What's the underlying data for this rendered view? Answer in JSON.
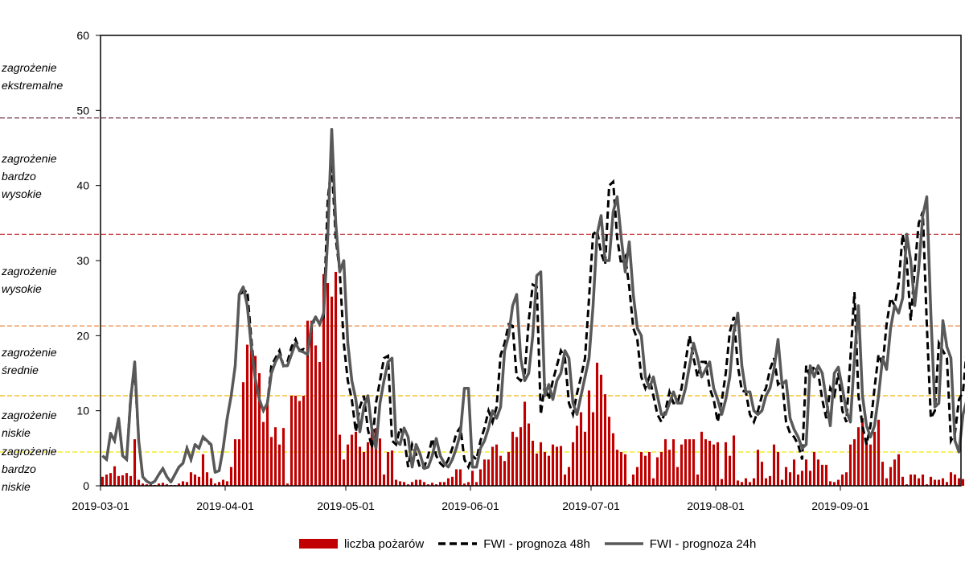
{
  "chart_data": {
    "type": "bar+line",
    "y_ticks": [
      "0",
      "10",
      "20",
      "30",
      "40",
      "50",
      "60"
    ],
    "x_ticks": [
      "2019-03-01",
      "2019-04-01",
      "2019-05-01",
      "2019-06-01",
      "2019-07-01",
      "2019-08-01",
      "2019-09-01"
    ],
    "ylim": [
      0,
      60
    ],
    "x_start": "2019-03-01",
    "x_end": "2019-09-30",
    "thresholds": [
      {
        "value": 4.5,
        "color": "#f2e600"
      },
      {
        "value": 12,
        "color": "#f0b400"
      },
      {
        "value": 21.3,
        "color": "#e87722"
      },
      {
        "value": 33.5,
        "color": "#c0282d"
      },
      {
        "value": 49,
        "color": "#5e1a2f"
      }
    ],
    "zones": [
      {
        "lines": [
          "zagrożenie",
          "bardzo",
          "niskie"
        ]
      },
      {
        "lines": [
          "zagrożenie",
          "niskie"
        ]
      },
      {
        "lines": [
          "zagrożenie",
          "średnie"
        ]
      },
      {
        "lines": [
          "zagrożenie",
          "wysokie"
        ]
      },
      {
        "lines": [
          "zagrożenie",
          "bardzo",
          "wysokie"
        ]
      },
      {
        "lines": [
          "zagrożenie",
          "ekstremalne"
        ]
      }
    ],
    "series": [
      {
        "name": "liczba pożarów",
        "kind": "bar",
        "color": "#c00000",
        "values": [
          1.2,
          1.5,
          1.7,
          2.6,
          1.3,
          1.4,
          1.7,
          1.3,
          6.2,
          0.8,
          0.3,
          0.2,
          0.2,
          0.1,
          0.3,
          0.4,
          0.2,
          0.1,
          0.1,
          0.3,
          0.6,
          0.5,
          1.8,
          1.5,
          1.2,
          4.2,
          1.8,
          1,
          0.3,
          0.5,
          0.8,
          0.6,
          2.5,
          6.2,
          6.2,
          13.8,
          18.8,
          18.8,
          17.3,
          15,
          8.5,
          11.3,
          6.5,
          7.8,
          5.5,
          7.7,
          0.3,
          12,
          12,
          11.3,
          12,
          22,
          22,
          18.7,
          16.5,
          28.2,
          27,
          25.2,
          28.5,
          6.8,
          3.5,
          5.5,
          6.8,
          7.2,
          5.2,
          4.5,
          5.8,
          7.5,
          7.7,
          6.3,
          1.5,
          4.5,
          4.7,
          0.8,
          0.6,
          0.5,
          0.2,
          0.5,
          0.8,
          0.8,
          0.5,
          0.2,
          0.4,
          0.2,
          0.5,
          0.5,
          1,
          1.2,
          2.2,
          2.2,
          0.3,
          0.5,
          2,
          0.5,
          2.2,
          3.5,
          3.5,
          5.2,
          5.5,
          4,
          3.3,
          4.5,
          7.2,
          6.5,
          7.8,
          11.2,
          8.3,
          6,
          4.3,
          5.8,
          4.5,
          4,
          5.5,
          5.2,
          5.3,
          1.5,
          2.5,
          5.8,
          8,
          9.8,
          7.2,
          12.7,
          9.8,
          16.4,
          14.8,
          12.2,
          9.2,
          7,
          4.8,
          4.5,
          4.2,
          0.2,
          1.5,
          2.5,
          4.5,
          4,
          4.5,
          1,
          3.8,
          4.5,
          6.2,
          4.8,
          6.2,
          2.5,
          5.5,
          6.2,
          6.2,
          6.2,
          1.5,
          7.2,
          6.2,
          6,
          5.5,
          5.8,
          0.9,
          5.8,
          4,
          6.7,
          0.7,
          0.5,
          1,
          0.5,
          1,
          4.8,
          3.2,
          1,
          1.3,
          5.5,
          4.5,
          0.8,
          2.5,
          1.8,
          3.5,
          1.5,
          2,
          3.5,
          2,
          4.5,
          3.5,
          2.8,
          2.8,
          0.6,
          0.5,
          0.8,
          1.5,
          1.8,
          5.5,
          6.2,
          7.8,
          9,
          6.2,
          5.5,
          7.2,
          8.8,
          3.2,
          1,
          2.5,
          3.5,
          4.2,
          1.2,
          0.2,
          1.5,
          1.5,
          1,
          1.5,
          0.2,
          1.2,
          0.8,
          0.8,
          1,
          0.5,
          1.8,
          1.5,
          1,
          0.9,
          0.5,
          0.8,
          0.4,
          0.8,
          0.2
        ]
      },
      {
        "name": "FWI - prognoza 48h",
        "kind": "line",
        "dash": "9,5",
        "color": "#000000",
        "values": [
          4,
          3.5,
          7,
          6,
          9,
          4,
          3.5,
          12,
          15.3,
          6,
          1.2,
          0.6,
          0.3,
          0.6,
          1.5,
          2.3,
          1.2,
          0.5,
          1.5,
          2.5,
          3,
          5,
          3.5,
          5.5,
          5,
          6.5,
          5.8,
          5.5,
          1.8,
          2,
          5,
          9,
          12,
          16,
          25.5,
          25.8,
          26,
          19.5,
          14.2,
          11.5,
          10,
          11,
          16,
          17,
          18,
          16,
          16.5,
          18.5,
          19.5,
          18,
          18.2,
          17.5,
          21,
          22.6,
          21.5,
          22.5,
          38,
          43,
          33,
          28.5,
          19,
          14,
          11.5,
          7.2,
          10.5,
          12,
          7.5,
          5,
          11,
          14,
          17,
          17.3,
          6,
          5.5,
          7.7,
          6.5,
          2.5,
          5.5,
          4.2,
          2.3,
          2.5,
          4,
          6.3,
          4,
          3,
          2.5,
          3.5,
          5,
          7,
          7.8,
          3.5,
          2.5,
          4,
          3.5,
          6,
          7.7,
          10,
          8.5,
          10.5,
          17.4,
          19,
          21.5,
          21.3,
          14.5,
          14,
          15,
          22,
          26.8,
          26.5,
          9.5,
          13.5,
          11.5,
          14,
          16,
          18,
          17,
          11,
          9.5,
          12.3,
          14.5,
          17,
          25,
          33.5,
          34,
          31,
          29.5,
          40,
          40.5,
          33,
          29.5,
          30.5,
          26.5,
          21,
          19.5,
          14.5,
          13,
          14.5,
          12,
          9.5,
          8.5,
          10,
          12.5,
          11,
          11,
          13,
          16.5,
          20,
          17,
          14.5,
          16.5,
          16.5,
          13,
          11.5,
          8.5,
          11.3,
          15,
          20.5,
          22.5,
          16,
          12.7,
          12.5,
          9.5,
          8.5,
          10,
          12,
          13,
          15.5,
          17,
          13.5,
          14,
          8.5,
          7,
          6.5,
          5.5,
          3.5,
          16,
          14.5,
          16,
          15,
          11.5,
          9,
          13,
          12,
          15,
          10,
          8.5,
          17,
          25.8,
          12,
          8,
          5.5,
          8,
          13,
          17.5,
          16,
          21.5,
          25,
          24,
          27,
          33.5,
          30,
          22,
          29,
          35,
          36.5,
          21.5,
          9,
          10,
          19,
          18,
          17,
          6,
          7,
          11.5,
          12.5,
          18.5,
          20.5,
          13.5,
          15,
          18,
          24.5,
          26.8,
          16,
          6.5,
          8,
          7.5,
          13.5,
          17,
          22,
          19.5,
          14,
          7,
          5.5,
          8.5,
          5,
          10,
          7.5
        ]
      },
      {
        "name": "FWI - prognoza 24h",
        "kind": "line",
        "color": "#595959",
        "values": [
          4,
          3.5,
          7,
          6,
          9,
          4,
          3.5,
          11.5,
          16.5,
          6,
          1.2,
          0.6,
          0.3,
          0.6,
          1.5,
          2.3,
          1.2,
          0.5,
          1.5,
          2.5,
          3,
          5,
          3.5,
          5.5,
          5,
          6.5,
          6,
          5.5,
          1.8,
          2,
          5,
          9,
          12,
          16,
          25.5,
          26.5,
          24,
          18.5,
          14.2,
          11.5,
          10,
          11,
          15,
          16.5,
          17.5,
          16,
          16,
          17.5,
          19,
          18,
          17.8,
          17.5,
          21.5,
          22.5,
          21.5,
          23,
          33,
          47.5,
          35,
          28.5,
          30,
          19,
          14,
          11.5,
          7.2,
          10.5,
          12,
          7.5,
          5,
          11,
          14,
          16.5,
          17,
          6,
          5.5,
          7.7,
          6.5,
          2.5,
          5.5,
          4.2,
          2.3,
          2.5,
          4,
          6.3,
          4,
          3,
          2.5,
          3.5,
          5,
          7,
          13,
          13,
          2.5,
          2.5,
          5,
          6,
          7.7,
          10,
          9,
          10.5,
          18,
          20,
          24,
          25.5,
          17,
          14,
          15,
          20,
          28,
          28.5,
          12,
          13.5,
          11.5,
          14,
          15,
          18,
          17,
          11,
          9.5,
          12,
          14.5,
          17,
          24,
          33.5,
          36,
          30,
          30,
          36.5,
          38.5,
          33,
          28.5,
          32.5,
          25.5,
          21,
          20,
          14.5,
          13,
          14.5,
          12,
          9.5,
          9.5,
          11,
          12.5,
          11,
          11,
          13,
          16,
          19,
          17,
          14.5,
          15.5,
          16.5,
          13,
          11.5,
          9.5,
          11.5,
          14.5,
          20.5,
          23,
          16,
          12.5,
          12.5,
          10,
          9.5,
          10,
          12,
          13,
          15.5,
          19.5,
          13.5,
          14,
          9,
          7.5,
          6.5,
          5,
          5.5,
          16,
          14.5,
          16,
          15,
          11.5,
          8,
          15,
          15.8,
          13,
          10,
          8.5,
          17,
          24,
          12,
          8,
          6.5,
          8,
          12,
          17,
          15.5,
          21,
          24,
          23,
          25,
          33.5,
          30,
          24,
          29,
          36,
          38.5,
          23,
          10.5,
          11,
          22,
          18.5,
          17,
          6,
          4.5,
          9.5,
          11.5,
          18.5,
          22,
          15.5,
          16.5,
          19,
          23,
          24.5,
          14.5,
          9.5,
          9.5,
          7.5,
          13.5,
          17,
          22,
          20.5,
          16.5,
          6,
          5.5,
          9,
          4,
          10,
          8
        ]
      }
    ]
  }
}
